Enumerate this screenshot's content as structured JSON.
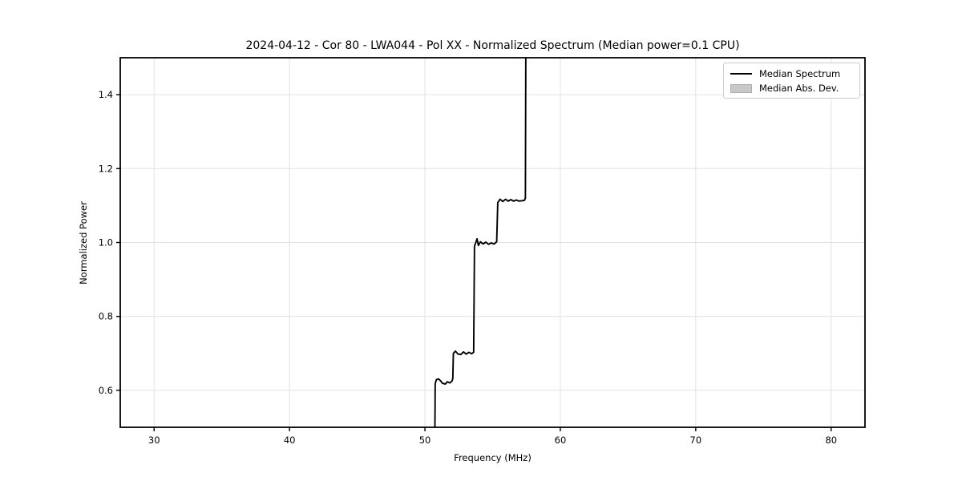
{
  "figure": {
    "title": "2024-04-12 - Cor 80 - LWA044 - Pol XX - Normalized Spectrum (Median power=0.1 CPU)",
    "xlabel": "Frequency (MHz)",
    "ylabel": "Normalized Power"
  },
  "legend": {
    "items": [
      {
        "label": "Median Spectrum",
        "swatch": "line",
        "color": "#000000"
      },
      {
        "label": "Median Abs. Dev.",
        "swatch": "patch",
        "color": "#c8c8c8"
      }
    ]
  },
  "colors": {
    "background": "#ffffff",
    "grid": "#e2e2e2",
    "spine": "#000000",
    "line": "#000000",
    "band": "#c8c8c8",
    "legend_border": "#cccccc"
  },
  "chart_data": {
    "type": "line",
    "title": "2024-04-12 - Cor 80 - LWA044 - Pol XX - Normalized Spectrum (Median power=0.1 CPU)",
    "xlabel": "Frequency (MHz)",
    "ylabel": "Normalized Power",
    "xlim": [
      27.5,
      82.5
    ],
    "ylim": [
      0.5,
      1.5
    ],
    "xticks": [
      30,
      40,
      50,
      60,
      70,
      80
    ],
    "xtick_labels": [
      "30",
      "40",
      "50",
      "60",
      "70",
      "80"
    ],
    "yticks": [
      0.6,
      0.8,
      1.0,
      1.2,
      1.4
    ],
    "ytick_labels": [
      "0.6",
      "0.8",
      "1.0",
      "1.2",
      "1.4"
    ],
    "grid": true,
    "legend_position": "upper right",
    "legend_entries": [
      "Median Spectrum",
      "Median Abs. Dev."
    ],
    "description": "Staircase-shaped normalized spectrum; curve enters from below y-limit at ~50.7 MHz, steps up through plateaus near 0.625, 0.70, 1.00 and 1.115, then exits above the top y-limit at ~57.45 MHz. The Median Abs. Dev. band is too narrow to be visible.",
    "series": [
      {
        "name": "Median Spectrum",
        "color": "#000000",
        "points": [
          [
            50.74,
            0.5
          ],
          [
            50.76,
            0.618
          ],
          [
            50.85,
            0.629
          ],
          [
            51.0,
            0.631
          ],
          [
            51.15,
            0.626
          ],
          [
            51.3,
            0.619
          ],
          [
            51.5,
            0.617
          ],
          [
            51.65,
            0.623
          ],
          [
            51.85,
            0.62
          ],
          [
            52.0,
            0.625
          ],
          [
            52.06,
            0.632
          ],
          [
            52.1,
            0.7
          ],
          [
            52.25,
            0.706
          ],
          [
            52.45,
            0.698
          ],
          [
            52.65,
            0.697
          ],
          [
            52.85,
            0.704
          ],
          [
            53.05,
            0.698
          ],
          [
            53.25,
            0.703
          ],
          [
            53.45,
            0.699
          ],
          [
            53.6,
            0.703
          ],
          [
            53.66,
            0.99
          ],
          [
            53.75,
            0.999
          ],
          [
            53.85,
            1.01
          ],
          [
            53.95,
            0.992
          ],
          [
            54.1,
            1.002
          ],
          [
            54.3,
            0.996
          ],
          [
            54.5,
            1.001
          ],
          [
            54.7,
            0.995
          ],
          [
            54.9,
            0.999
          ],
          [
            55.1,
            0.996
          ],
          [
            55.3,
            1.002
          ],
          [
            55.38,
            1.108
          ],
          [
            55.55,
            1.117
          ],
          [
            55.75,
            1.111
          ],
          [
            55.95,
            1.117
          ],
          [
            56.15,
            1.112
          ],
          [
            56.35,
            1.116
          ],
          [
            56.55,
            1.112
          ],
          [
            56.75,
            1.115
          ],
          [
            56.95,
            1.112
          ],
          [
            57.15,
            1.113
          ],
          [
            57.35,
            1.114
          ],
          [
            57.42,
            1.12
          ],
          [
            57.45,
            1.5
          ]
        ]
      }
    ]
  }
}
